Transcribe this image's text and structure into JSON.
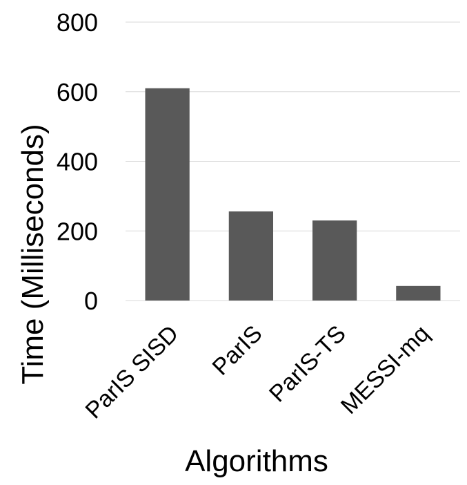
{
  "chart_data": {
    "type": "bar",
    "categories": [
      "ParIS SISD",
      "ParIS",
      "ParIS-TS",
      "MESSI-mq"
    ],
    "values": [
      610,
      256,
      230,
      42
    ],
    "color": "#595959",
    "ylim": [
      0,
      800
    ],
    "yticks": [
      0,
      200,
      400,
      600,
      800
    ],
    "grid": true,
    "x_label": "Algorithms",
    "y_label": "Time (Milliseconds)"
  }
}
